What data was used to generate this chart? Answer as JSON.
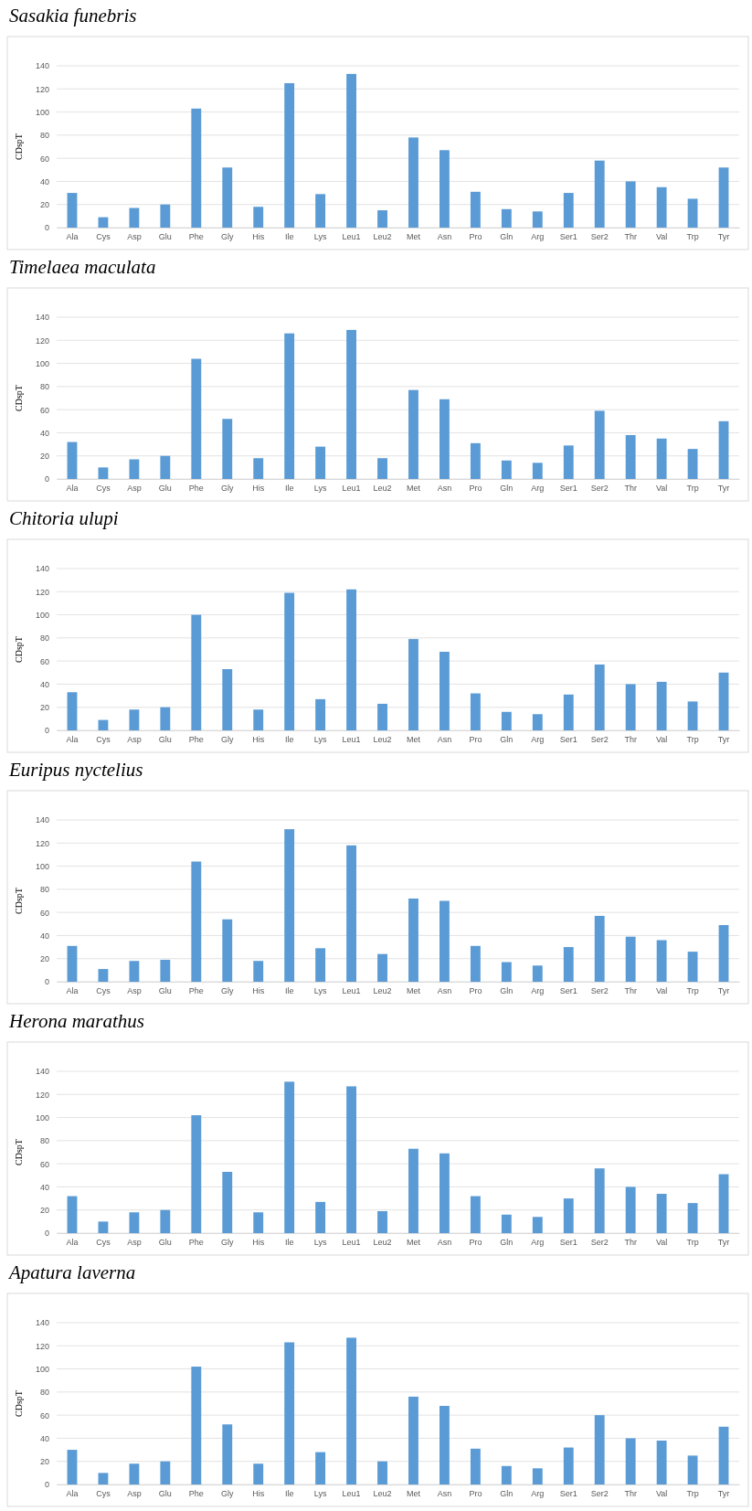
{
  "chart_data": [
    {
      "type": "bar",
      "title": "Sasakia funebris",
      "ylabel": "CDspT",
      "categories": [
        "Ala",
        "Cys",
        "Asp",
        "Glu",
        "Phe",
        "Gly",
        "His",
        "Ile",
        "Lys",
        "Leu1",
        "Leu2",
        "Met",
        "Asn",
        "Pro",
        "Gln",
        "Arg",
        "Ser1",
        "Ser2",
        "Thr",
        "Val",
        "Trp",
        "Tyr"
      ],
      "values": [
        30,
        9,
        17,
        20,
        103,
        52,
        18,
        125,
        29,
        133,
        15,
        78,
        67,
        31,
        16,
        14,
        30,
        58,
        40,
        35,
        25,
        52
      ],
      "color": "#5b9bd5",
      "ylim": [
        0,
        140
      ],
      "yticks": [
        0,
        20,
        40,
        60,
        80,
        100,
        120,
        140
      ],
      "grid": "y"
    },
    {
      "type": "bar",
      "title": "Timelaea maculata",
      "ylabel": "CDspT",
      "categories": [
        "Ala",
        "Cys",
        "Asp",
        "Glu",
        "Phe",
        "Gly",
        "His",
        "Ile",
        "Lys",
        "Leu1",
        "Leu2",
        "Met",
        "Asn",
        "Pro",
        "Gln",
        "Arg",
        "Ser1",
        "Ser2",
        "Thr",
        "Val",
        "Trp",
        "Tyr"
      ],
      "values": [
        32,
        10,
        17,
        20,
        104,
        52,
        18,
        126,
        28,
        129,
        18,
        77,
        69,
        31,
        16,
        14,
        29,
        59,
        38,
        35,
        26,
        50
      ],
      "color": "#5b9bd5",
      "ylim": [
        0,
        140
      ],
      "yticks": [
        0,
        20,
        40,
        60,
        80,
        100,
        120,
        140
      ],
      "grid": "y"
    },
    {
      "type": "bar",
      "title": "Chitoria ulupi",
      "ylabel": "CDspT",
      "categories": [
        "Ala",
        "Cys",
        "Asp",
        "Glu",
        "Phe",
        "Gly",
        "His",
        "Ile",
        "Lys",
        "Leu1",
        "Leu2",
        "Met",
        "Asn",
        "Pro",
        "Gln",
        "Arg",
        "Ser1",
        "Ser2",
        "Thr",
        "Val",
        "Trp",
        "Tyr"
      ],
      "values": [
        33,
        9,
        18,
        20,
        100,
        53,
        18,
        119,
        27,
        122,
        23,
        79,
        68,
        32,
        16,
        14,
        31,
        57,
        40,
        42,
        25,
        50
      ],
      "color": "#5b9bd5",
      "ylim": [
        0,
        140
      ],
      "yticks": [
        0,
        20,
        40,
        60,
        80,
        100,
        120,
        140
      ],
      "grid": "y"
    },
    {
      "type": "bar",
      "title": "Euripus nyctelius",
      "ylabel": "CDspT",
      "categories": [
        "Ala",
        "Cys",
        "Asp",
        "Glu",
        "Phe",
        "Gly",
        "His",
        "Ile",
        "Lys",
        "Leu1",
        "Leu2",
        "Met",
        "Asn",
        "Pro",
        "Gln",
        "Arg",
        "Ser1",
        "Ser2",
        "Thr",
        "Val",
        "Trp",
        "Tyr"
      ],
      "values": [
        31,
        11,
        18,
        19,
        104,
        54,
        18,
        132,
        29,
        118,
        24,
        72,
        70,
        31,
        17,
        14,
        30,
        57,
        39,
        36,
        26,
        49
      ],
      "color": "#5b9bd5",
      "ylim": [
        0,
        140
      ],
      "yticks": [
        0,
        20,
        40,
        60,
        80,
        100,
        120,
        140
      ],
      "grid": "y"
    },
    {
      "type": "bar",
      "title": "Herona marathus",
      "ylabel": "CDspT",
      "categories": [
        "Ala",
        "Cys",
        "Asp",
        "Glu",
        "Phe",
        "Gly",
        "His",
        "Ile",
        "Lys",
        "Leu1",
        "Leu2",
        "Met",
        "Asn",
        "Pro",
        "Gln",
        "Arg",
        "Ser1",
        "Ser2",
        "Thr",
        "Val",
        "Trp",
        "Tyr"
      ],
      "values": [
        32,
        10,
        18,
        20,
        102,
        53,
        18,
        131,
        27,
        127,
        19,
        73,
        69,
        32,
        16,
        14,
        30,
        56,
        40,
        34,
        26,
        51
      ],
      "color": "#5b9bd5",
      "ylim": [
        0,
        140
      ],
      "yticks": [
        0,
        20,
        40,
        60,
        80,
        100,
        120,
        140
      ],
      "grid": "y"
    },
    {
      "type": "bar",
      "title": "Apatura laverna",
      "ylabel": "CDspT",
      "categories": [
        "Ala",
        "Cys",
        "Asp",
        "Glu",
        "Phe",
        "Gly",
        "His",
        "Ile",
        "Lys",
        "Leu1",
        "Leu2",
        "Met",
        "Asn",
        "Pro",
        "Gln",
        "Arg",
        "Ser1",
        "Ser2",
        "Thr",
        "Val",
        "Trp",
        "Tyr"
      ],
      "values": [
        30,
        10,
        18,
        20,
        102,
        52,
        18,
        123,
        28,
        127,
        20,
        76,
        68,
        31,
        16,
        14,
        32,
        60,
        40,
        38,
        25,
        50
      ],
      "color": "#5b9bd5",
      "ylim": [
        0,
        140
      ],
      "yticks": [
        0,
        20,
        40,
        60,
        80,
        100,
        120,
        140
      ],
      "grid": "y"
    }
  ]
}
